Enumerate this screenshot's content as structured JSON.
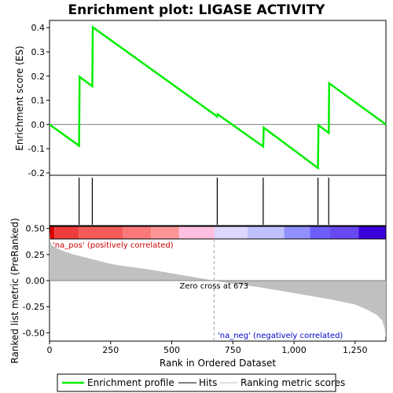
{
  "chart_data": {
    "type": "line",
    "title": "Enrichment plot: LIGASE ACTIVITY",
    "es_panel": {
      "ylabel": "Enrichment score (ES)",
      "ylim": [
        -0.21,
        0.43
      ],
      "yticks": [
        -0.2,
        -0.1,
        0.0,
        0.1,
        0.2,
        0.3,
        0.4
      ],
      "ytick_labels": [
        "-0.2",
        "-0.1",
        "0.0",
        "0.1",
        "0.2",
        "0.3",
        "0.4"
      ],
      "series": [
        {
          "name": "Enrichment profile",
          "color": "#00ee00",
          "x": [
            0,
            121,
            123,
            175,
            177,
            686,
            688,
            874,
            876,
            1098,
            1100,
            1142,
            1144,
            1376
          ],
          "y": [
            0.0,
            -0.088,
            0.197,
            0.158,
            0.402,
            0.033,
            0.042,
            -0.091,
            -0.013,
            -0.18,
            -0.003,
            -0.035,
            0.17,
            0.0
          ]
        }
      ]
    },
    "hits": {
      "color": "#000000",
      "positions": [
        121,
        175,
        686,
        874,
        1098,
        1142
      ]
    },
    "color_bar": {
      "segments": [
        {
          "from": 0,
          "to": 20,
          "color": "#dd0000"
        },
        {
          "from": 20,
          "to": 120,
          "color": "#ee3c3c"
        },
        {
          "from": 120,
          "to": 300,
          "color": "#f55a5a"
        },
        {
          "from": 300,
          "to": 415,
          "color": "#fa7878"
        },
        {
          "from": 415,
          "to": 530,
          "color": "#fc9696"
        },
        {
          "from": 530,
          "to": 675,
          "color": "#ffbfe0"
        },
        {
          "from": 675,
          "to": 810,
          "color": "#dcd8ff"
        },
        {
          "from": 810,
          "to": 960,
          "color": "#c0c0ff"
        },
        {
          "from": 960,
          "to": 1065,
          "color": "#9090ff"
        },
        {
          "from": 1065,
          "to": 1145,
          "color": "#6e5eff"
        },
        {
          "from": 1145,
          "to": 1265,
          "color": "#6848f0"
        },
        {
          "from": 1265,
          "to": 1376,
          "color": "#3c00dc"
        }
      ]
    },
    "metric_panel": {
      "ylabel": "Ranked list metric (PreRanked)",
      "xlabel": "Rank in Ordered Dataset",
      "ylim": [
        -0.58,
        0.52
      ],
      "yticks": [
        -0.5,
        -0.25,
        0.0,
        0.25,
        0.5
      ],
      "ytick_labels": [
        "-0.50",
        "-0.25",
        "0.00",
        "0.25",
        "0.50"
      ],
      "xlim": [
        0,
        1376
      ],
      "xticks": [
        0,
        250,
        500,
        750,
        1000,
        1250
      ],
      "xtick_labels": [
        "0",
        "250",
        "500",
        "750",
        "1,000",
        "1,250"
      ],
      "fill_color": "#c0c0c0",
      "metric_x": [
        0,
        3,
        10,
        30,
        60,
        100,
        150,
        200,
        250,
        300,
        400,
        500,
        600,
        673,
        750,
        850,
        950,
        1050,
        1150,
        1250,
        1300,
        1340,
        1360,
        1370,
        1376
      ],
      "metric_y": [
        0.47,
        0.38,
        0.34,
        0.31,
        0.28,
        0.25,
        0.22,
        0.19,
        0.16,
        0.14,
        0.11,
        0.07,
        0.03,
        0.0,
        -0.03,
        -0.06,
        -0.1,
        -0.14,
        -0.18,
        -0.23,
        -0.28,
        -0.33,
        -0.38,
        -0.45,
        -0.55
      ],
      "zero_cross": 673,
      "zero_cross_label": "Zero cross at 673",
      "pos_label": "'na_pos' (positively correlated)",
      "neg_label": "'na_neg' (negatively correlated)",
      "pos_label_color": "#cc0000",
      "neg_label_color": "#0000cc"
    },
    "legend": {
      "placement": "bottom",
      "entries": [
        "Enrichment profile",
        "Hits",
        "Ranking metric scores"
      ],
      "colors": [
        "#00ee00",
        "#000000",
        "#c0c0c0"
      ]
    }
  }
}
